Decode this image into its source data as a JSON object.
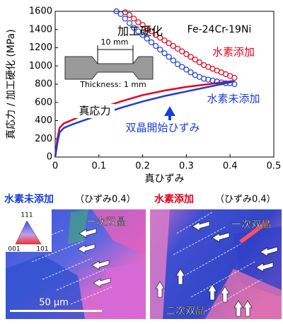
{
  "chart_data": {
    "type": "line",
    "x_label": "真ひずみ",
    "y_label": "真応力 / 加工硬化 (MPa)",
    "xlim": [
      0,
      0.5
    ],
    "ylim": [
      0,
      1600
    ],
    "xticks": [
      0,
      0.1,
      0.2,
      0.3,
      0.4,
      0.5
    ],
    "yticks": [
      0,
      200,
      400,
      600,
      800,
      1000,
      1200,
      1400,
      1600
    ],
    "material": "Fe-24Cr-19Ni",
    "hardening_label": "加工硬化",
    "true_stress_label": "真応力",
    "twin_onset_label": "双晶開始ひずみ",
    "gauge_length": "10 mm",
    "thickness": "Thickness: 1 mm",
    "series": [
      {
        "name": "水素添加",
        "color": "#e8001c",
        "x": [
          0,
          0.005,
          0.01,
          0.02,
          0.03,
          0.05,
          0.1,
          0.15,
          0.2,
          0.25,
          0.3,
          0.35,
          0.4,
          0.41
        ],
        "values": [
          0,
          200,
          320,
          370,
          390,
          430,
          530,
          610,
          680,
          730,
          770,
          800,
          830,
          835
        ],
        "hardening_x": [
          0.16,
          0.17,
          0.18,
          0.19,
          0.2,
          0.21,
          0.22,
          0.23,
          0.24,
          0.25,
          0.26,
          0.27,
          0.28,
          0.29,
          0.3,
          0.31,
          0.32,
          0.33,
          0.34,
          0.35,
          0.36,
          0.37,
          0.38,
          0.39,
          0.4,
          0.41
        ],
        "hardening": [
          1590,
          1560,
          1520,
          1480,
          1450,
          1410,
          1380,
          1340,
          1310,
          1280,
          1250,
          1220,
          1190,
          1160,
          1130,
          1100,
          1070,
          1040,
          1010,
          990,
          970,
          950,
          930,
          910,
          890,
          870
        ]
      },
      {
        "name": "水素未添加",
        "color": "#1a3fd8",
        "x": [
          0,
          0.005,
          0.01,
          0.02,
          0.04,
          0.07,
          0.1,
          0.15,
          0.2,
          0.25,
          0.3,
          0.35,
          0.4,
          0.41
        ],
        "values": [
          0,
          150,
          270,
          320,
          360,
          410,
          460,
          540,
          610,
          670,
          720,
          770,
          820,
          830
        ],
        "hardening_x": [
          0.14,
          0.15,
          0.16,
          0.17,
          0.18,
          0.19,
          0.2,
          0.21,
          0.22,
          0.23,
          0.24,
          0.25,
          0.26,
          0.27,
          0.28,
          0.29,
          0.3,
          0.31,
          0.32,
          0.33,
          0.34,
          0.35,
          0.36,
          0.37,
          0.38,
          0.39,
          0.4,
          0.41
        ],
        "hardening": [
          1600,
          1570,
          1520,
          1470,
          1420,
          1380,
          1340,
          1300,
          1260,
          1220,
          1180,
          1140,
          1100,
          1060,
          1020,
          990,
          960,
          930,
          900,
          880,
          860,
          850,
          840,
          830,
          820,
          810,
          810,
          800
        ]
      }
    ]
  },
  "micrographs": {
    "left": {
      "title": "水素未添加",
      "condition": "（ひずみ0.4）",
      "twin_label": "一次双晶",
      "scale_bar": "50 μm",
      "legend": {
        "top": "111",
        "left": "001",
        "right": "101"
      }
    },
    "right": {
      "title": "水素添加",
      "condition": "（ひずみ0.4）",
      "primary_label": "一次双晶",
      "secondary_label": "二次双晶"
    }
  }
}
